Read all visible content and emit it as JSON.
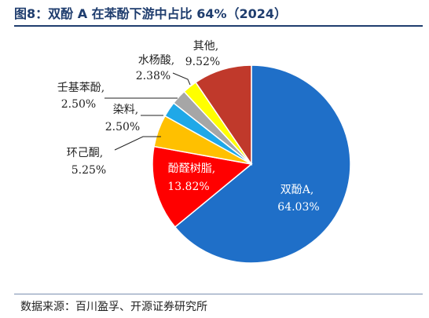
{
  "title": "图8：双酚 A 在苯酚下游中占比 64%（2024）",
  "source": "数据来源：百川盈孚、开源证券研究所",
  "chart_data": {
    "type": "pie",
    "title": "图8：双酚 A 在苯酚下游中占比 64%（2024）",
    "slices": [
      {
        "name": "双酚A,",
        "value": 64.03,
        "label": "64.03%",
        "color": "#1f6fc8"
      },
      {
        "name": "酚醛树脂,",
        "value": 13.82,
        "label": "13.82%",
        "color": "#ff0000"
      },
      {
        "name": "环己酮,",
        "value": 5.25,
        "label": "5.25%",
        "color": "#ffc000"
      },
      {
        "name": "染料,",
        "value": 2.5,
        "label": "2.50%",
        "color": "#1fa8e8"
      },
      {
        "name": "壬基苯酚,",
        "value": 2.5,
        "label": "2.50%",
        "color": "#a6a6a6"
      },
      {
        "name": "水杨酸,",
        "value": 2.38,
        "label": "2.38%",
        "color": "#ffff00"
      },
      {
        "name": "其他,",
        "value": 9.52,
        "label": "9.52%",
        "color": "#c0392b"
      }
    ]
  }
}
